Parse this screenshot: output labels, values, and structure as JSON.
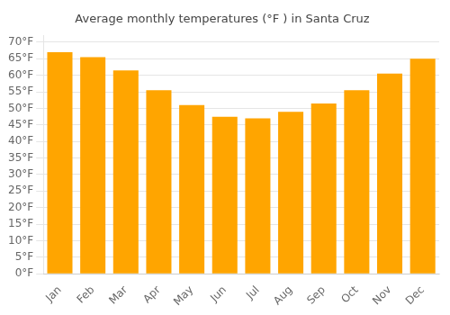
{
  "chart_data": {
    "type": "bar",
    "title": "Average monthly temperatures (°F ) in Santa Cruz",
    "categories": [
      "Jan",
      "Feb",
      "Mar",
      "Apr",
      "May",
      "Jun",
      "Jul",
      "Aug",
      "Sep",
      "Oct",
      "Nov",
      "Dec"
    ],
    "values": [
      67,
      65.5,
      61.5,
      55.5,
      51,
      47.5,
      47,
      49,
      51.5,
      55.5,
      60.5,
      65
    ],
    "color": "#FFA500",
    "ylim": [
      0,
      72
    ],
    "yticks": [
      {
        "value": 0,
        "label": "0°F"
      },
      {
        "value": 5,
        "label": "5°F"
      },
      {
        "value": 10,
        "label": "10°F"
      },
      {
        "value": 15,
        "label": "15°F"
      },
      {
        "value": 20,
        "label": "20°F"
      },
      {
        "value": 25,
        "label": "25°F"
      },
      {
        "value": 30,
        "label": "30°F"
      },
      {
        "value": 35,
        "label": "35°F"
      },
      {
        "value": 40,
        "label": "40°F"
      },
      {
        "value": 45,
        "label": "45°F"
      },
      {
        "value": 50,
        "label": "50°F"
      },
      {
        "value": 55,
        "label": "55°F"
      },
      {
        "value": 60,
        "label": "60°F"
      },
      {
        "value": 65,
        "label": "65°F"
      },
      {
        "value": 70,
        "label": "70°F"
      }
    ],
    "grid": true
  }
}
